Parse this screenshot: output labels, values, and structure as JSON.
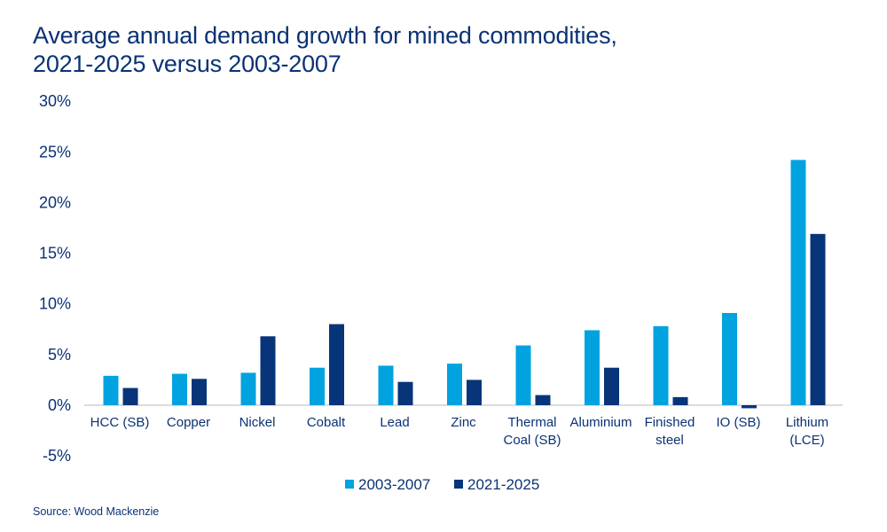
{
  "title_lines": [
    "Average annual demand growth for mined commodities,",
    "2021-2025 versus 2003-2007"
  ],
  "source": "Source: Wood Mackenzie",
  "chart_data": {
    "type": "bar",
    "title": "Average annual demand growth for mined commodities, 2021-2025 versus 2003-2007",
    "categories": [
      [
        "HCC (SB)"
      ],
      [
        "Copper"
      ],
      [
        "Nickel"
      ],
      [
        "Cobalt"
      ],
      [
        "Lead"
      ],
      [
        "Zinc"
      ],
      [
        "Thermal",
        "Coal (SB)"
      ],
      [
        "Aluminium"
      ],
      [
        "Finished",
        "steel"
      ],
      [
        "IO (SB)"
      ],
      [
        "Lithium",
        "(LCE)"
      ]
    ],
    "series": [
      {
        "name": "2003-2007",
        "color": "#00a3e0",
        "values": [
          2.9,
          3.1,
          3.2,
          3.7,
          3.9,
          4.1,
          5.9,
          7.4,
          7.8,
          9.1,
          24.2
        ]
      },
      {
        "name": "2021-2025",
        "color": "#08357a",
        "values": [
          1.7,
          2.6,
          6.8,
          8.0,
          2.3,
          2.5,
          1.0,
          3.7,
          0.8,
          -0.3,
          16.9
        ]
      }
    ],
    "ylim": [
      -5,
      30
    ],
    "yticks": [
      -5,
      0,
      5,
      10,
      15,
      20,
      25,
      30
    ],
    "ytick_labels": [
      "-5%",
      "0%",
      "5%",
      "10%",
      "15%",
      "20%",
      "25%",
      "30%"
    ],
    "grid": false,
    "legend_position": "bottom"
  }
}
